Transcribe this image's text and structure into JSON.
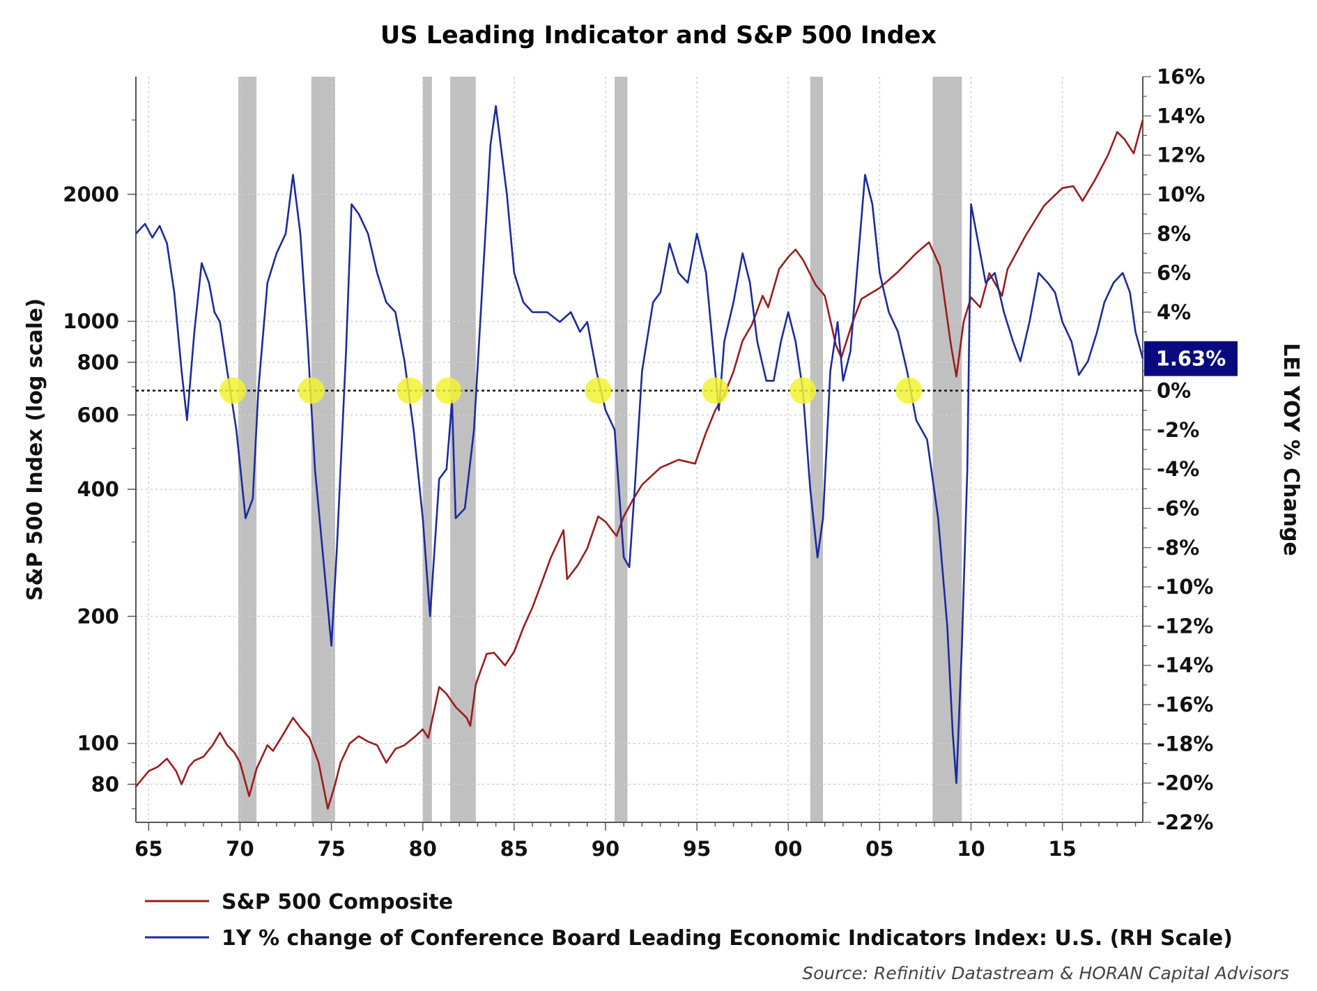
{
  "chart_data": {
    "type": "line",
    "title": "US Leading Indicator and S&P 500 Index",
    "ylabel": "S&P 500 Index (log scale)",
    "y2label": "LEI YOY % Change",
    "source": "Source: Refinitiv Datastream & HORAN Capital Advisors",
    "x_ticks": [
      "65",
      "70",
      "75",
      "80",
      "85",
      "90",
      "95",
      "00",
      "05",
      "10",
      "15"
    ],
    "y_left_ticks": [
      "80",
      "100",
      "200",
      "400",
      "600",
      "800",
      "1000",
      "2000"
    ],
    "y_right_ticks": [
      "16%",
      "14%",
      "12%",
      "10%",
      "8%",
      "6%",
      "4%",
      "2%",
      "0%",
      "-2%",
      "-4%",
      "-6%",
      "-8%",
      "-10%",
      "-12%",
      "-14%",
      "-16%",
      "-18%",
      "-20%",
      "-22%"
    ],
    "xlim": [
      1964.3,
      2019.4
    ],
    "y_left_lim": [
      65,
      3800
    ],
    "y_left_scale": "log",
    "y_right_lim": [
      -22,
      16
    ],
    "grid": true,
    "legend_position": "bottom-left",
    "colors": {
      "sp500": "#9b1b1b",
      "lei": "#1c2a9c",
      "recession": "#c0c0c0",
      "marker": "#f2f233",
      "badge": "#0a0a80"
    },
    "last_value_label": "1.63%",
    "recessions": [
      [
        1969.9,
        1970.9
      ],
      [
        1973.9,
        1975.2
      ],
      [
        1980.0,
        1980.5
      ],
      [
        1981.5,
        1982.9
      ],
      [
        1990.5,
        1991.2
      ],
      [
        2001.2,
        2001.9
      ],
      [
        2007.9,
        2009.5
      ]
    ],
    "zero_crossings": [
      1969.6,
      1973.9,
      1979.3,
      1981.4,
      1989.6,
      1996.0,
      2000.8,
      2006.6
    ],
    "series": [
      {
        "name": "S&P 500 Composite",
        "axis": "left",
        "points": [
          [
            1964.3,
            79
          ],
          [
            1965.0,
            86
          ],
          [
            1965.5,
            88
          ],
          [
            1966.0,
            92
          ],
          [
            1966.5,
            86
          ],
          [
            1966.8,
            80
          ],
          [
            1967.2,
            88
          ],
          [
            1967.5,
            91
          ],
          [
            1968.0,
            93
          ],
          [
            1968.5,
            99
          ],
          [
            1968.9,
            106
          ],
          [
            1969.3,
            99
          ],
          [
            1969.7,
            95
          ],
          [
            1970.0,
            90
          ],
          [
            1970.5,
            75
          ],
          [
            1970.9,
            87
          ],
          [
            1971.5,
            99
          ],
          [
            1971.8,
            96
          ],
          [
            1972.3,
            104
          ],
          [
            1972.9,
            115
          ],
          [
            1973.3,
            109
          ],
          [
            1973.8,
            103
          ],
          [
            1974.3,
            90
          ],
          [
            1974.8,
            70
          ],
          [
            1975.2,
            80
          ],
          [
            1975.5,
            90
          ],
          [
            1976.0,
            100
          ],
          [
            1976.5,
            104
          ],
          [
            1977.0,
            101
          ],
          [
            1977.5,
            99
          ],
          [
            1978.0,
            90
          ],
          [
            1978.5,
            97
          ],
          [
            1979.0,
            99
          ],
          [
            1979.6,
            104
          ],
          [
            1980.0,
            108
          ],
          [
            1980.3,
            103
          ],
          [
            1980.9,
            136
          ],
          [
            1981.3,
            131
          ],
          [
            1981.8,
            122
          ],
          [
            1982.4,
            115
          ],
          [
            1982.6,
            110
          ],
          [
            1982.9,
            138
          ],
          [
            1983.5,
            163
          ],
          [
            1983.9,
            164
          ],
          [
            1984.5,
            153
          ],
          [
            1985.0,
            165
          ],
          [
            1985.5,
            188
          ],
          [
            1986.0,
            210
          ],
          [
            1986.5,
            240
          ],
          [
            1987.0,
            275
          ],
          [
            1987.7,
            320
          ],
          [
            1987.9,
            245
          ],
          [
            1988.5,
            265
          ],
          [
            1989.0,
            290
          ],
          [
            1989.6,
            345
          ],
          [
            1990.0,
            335
          ],
          [
            1990.6,
            310
          ],
          [
            1991.0,
            345
          ],
          [
            1991.5,
            378
          ],
          [
            1992.0,
            410
          ],
          [
            1993.0,
            450
          ],
          [
            1994.0,
            470
          ],
          [
            1994.9,
            460
          ],
          [
            1995.5,
            545
          ],
          [
            1996.0,
            615
          ],
          [
            1996.5,
            670
          ],
          [
            1997.0,
            760
          ],
          [
            1997.5,
            900
          ],
          [
            1998.0,
            980
          ],
          [
            1998.6,
            1150
          ],
          [
            1998.9,
            1080
          ],
          [
            1999.5,
            1330
          ],
          [
            2000.0,
            1420
          ],
          [
            2000.4,
            1480
          ],
          [
            2000.8,
            1400
          ],
          [
            2001.5,
            1220
          ],
          [
            2002.0,
            1150
          ],
          [
            2002.6,
            880
          ],
          [
            2002.9,
            820
          ],
          [
            2003.5,
            990
          ],
          [
            2004.0,
            1130
          ],
          [
            2005.0,
            1200
          ],
          [
            2006.0,
            1310
          ],
          [
            2007.0,
            1450
          ],
          [
            2007.7,
            1540
          ],
          [
            2008.3,
            1350
          ],
          [
            2008.9,
            880
          ],
          [
            2009.2,
            740
          ],
          [
            2009.6,
            1000
          ],
          [
            2010.0,
            1140
          ],
          [
            2010.5,
            1080
          ],
          [
            2011.0,
            1300
          ],
          [
            2011.7,
            1150
          ],
          [
            2012.0,
            1330
          ],
          [
            2013.0,
            1600
          ],
          [
            2014.0,
            1880
          ],
          [
            2015.0,
            2070
          ],
          [
            2015.6,
            2090
          ],
          [
            2016.1,
            1930
          ],
          [
            2016.8,
            2170
          ],
          [
            2017.5,
            2480
          ],
          [
            2018.0,
            2810
          ],
          [
            2018.4,
            2700
          ],
          [
            2018.9,
            2500
          ],
          [
            2019.4,
            3000
          ]
        ]
      },
      {
        "name": "1Y % change of Conference Board Leading Economic Indicators Index: U.S. (RH Scale)",
        "axis": "right",
        "points": [
          [
            1964.3,
            8.0
          ],
          [
            1964.8,
            8.5
          ],
          [
            1965.2,
            7.8
          ],
          [
            1965.6,
            8.4
          ],
          [
            1966.0,
            7.5
          ],
          [
            1966.4,
            5.0
          ],
          [
            1966.8,
            1.0
          ],
          [
            1967.1,
            -1.5
          ],
          [
            1967.5,
            3.0
          ],
          [
            1967.9,
            6.5
          ],
          [
            1968.3,
            5.5
          ],
          [
            1968.6,
            4.0
          ],
          [
            1968.9,
            3.5
          ],
          [
            1969.3,
            1.0
          ],
          [
            1969.8,
            -2.0
          ],
          [
            1970.3,
            -6.5
          ],
          [
            1970.7,
            -5.5
          ],
          [
            1971.0,
            0.0
          ],
          [
            1971.5,
            5.5
          ],
          [
            1972.0,
            7.0
          ],
          [
            1972.5,
            8.0
          ],
          [
            1972.9,
            11.0
          ],
          [
            1973.3,
            8.0
          ],
          [
            1973.7,
            2.5
          ],
          [
            1974.1,
            -4.0
          ],
          [
            1974.6,
            -9.0
          ],
          [
            1975.0,
            -13.0
          ],
          [
            1975.3,
            -8.0
          ],
          [
            1975.8,
            2.0
          ],
          [
            1976.1,
            9.5
          ],
          [
            1976.5,
            9.0
          ],
          [
            1977.0,
            8.0
          ],
          [
            1977.5,
            6.0
          ],
          [
            1978.0,
            4.5
          ],
          [
            1978.5,
            4.0
          ],
          [
            1979.0,
            1.5
          ],
          [
            1979.5,
            -2.0
          ],
          [
            1980.0,
            -6.5
          ],
          [
            1980.4,
            -11.5
          ],
          [
            1980.9,
            -4.5
          ],
          [
            1981.3,
            -4.0
          ],
          [
            1981.6,
            -0.5
          ],
          [
            1981.8,
            -6.5
          ],
          [
            1982.3,
            -6.0
          ],
          [
            1982.8,
            -2.0
          ],
          [
            1983.3,
            6.0
          ],
          [
            1983.7,
            12.5
          ],
          [
            1984.0,
            14.5
          ],
          [
            1984.6,
            10.0
          ],
          [
            1985.0,
            6.0
          ],
          [
            1985.5,
            4.5
          ],
          [
            1986.0,
            4.0
          ],
          [
            1986.8,
            4.0
          ],
          [
            1987.5,
            3.5
          ],
          [
            1988.1,
            4.0
          ],
          [
            1988.6,
            3.0
          ],
          [
            1989.0,
            3.5
          ],
          [
            1989.5,
            1.0
          ],
          [
            1990.0,
            -1.0
          ],
          [
            1990.5,
            -2.0
          ],
          [
            1991.0,
            -8.5
          ],
          [
            1991.3,
            -9.0
          ],
          [
            1991.6,
            -5.0
          ],
          [
            1992.0,
            1.0
          ],
          [
            1992.6,
            4.5
          ],
          [
            1993.0,
            5.0
          ],
          [
            1993.5,
            7.5
          ],
          [
            1994.0,
            6.0
          ],
          [
            1994.5,
            5.5
          ],
          [
            1995.0,
            8.0
          ],
          [
            1995.5,
            6.0
          ],
          [
            1995.9,
            2.0
          ],
          [
            1996.2,
            -1.0
          ],
          [
            1996.5,
            2.5
          ],
          [
            1997.0,
            4.5
          ],
          [
            1997.5,
            7.0
          ],
          [
            1997.9,
            5.5
          ],
          [
            1998.3,
            2.5
          ],
          [
            1998.8,
            0.5
          ],
          [
            1999.2,
            0.5
          ],
          [
            1999.6,
            2.5
          ],
          [
            2000.0,
            4.0
          ],
          [
            2000.4,
            2.5
          ],
          [
            2000.8,
            0.0
          ],
          [
            2001.2,
            -5.0
          ],
          [
            2001.6,
            -8.5
          ],
          [
            2001.9,
            -6.5
          ],
          [
            2002.3,
            1.0
          ],
          [
            2002.7,
            3.5
          ],
          [
            2003.0,
            0.5
          ],
          [
            2003.4,
            2.0
          ],
          [
            2003.8,
            6.5
          ],
          [
            2004.2,
            11.0
          ],
          [
            2004.6,
            9.5
          ],
          [
            2005.0,
            6.0
          ],
          [
            2005.5,
            4.0
          ],
          [
            2006.0,
            3.0
          ],
          [
            2006.5,
            1.0
          ],
          [
            2007.0,
            -1.5
          ],
          [
            2007.6,
            -2.5
          ],
          [
            2008.2,
            -6.5
          ],
          [
            2008.7,
            -12.0
          ],
          [
            2009.0,
            -17.5
          ],
          [
            2009.2,
            -20.0
          ],
          [
            2009.5,
            -13.0
          ],
          [
            2009.8,
            -4.0
          ],
          [
            2010.0,
            9.5
          ],
          [
            2010.4,
            7.5
          ],
          [
            2010.8,
            5.5
          ],
          [
            2011.3,
            6.0
          ],
          [
            2011.8,
            4.0
          ],
          [
            2012.3,
            2.5
          ],
          [
            2012.7,
            1.5
          ],
          [
            2013.2,
            3.5
          ],
          [
            2013.7,
            6.0
          ],
          [
            2014.2,
            5.5
          ],
          [
            2014.6,
            5.0
          ],
          [
            2015.0,
            3.5
          ],
          [
            2015.5,
            2.5
          ],
          [
            2015.9,
            0.8
          ],
          [
            2016.4,
            1.5
          ],
          [
            2016.9,
            3.0
          ],
          [
            2017.3,
            4.5
          ],
          [
            2017.8,
            5.5
          ],
          [
            2018.3,
            6.0
          ],
          [
            2018.7,
            5.0
          ],
          [
            2019.0,
            3.0
          ],
          [
            2019.4,
            1.63
          ]
        ]
      }
    ]
  },
  "legend": {
    "sp500_label": "S&P 500 Composite",
    "lei_label": "1Y % change of Conference Board Leading Economic Indicators Index: U.S. (RH Scale)"
  }
}
